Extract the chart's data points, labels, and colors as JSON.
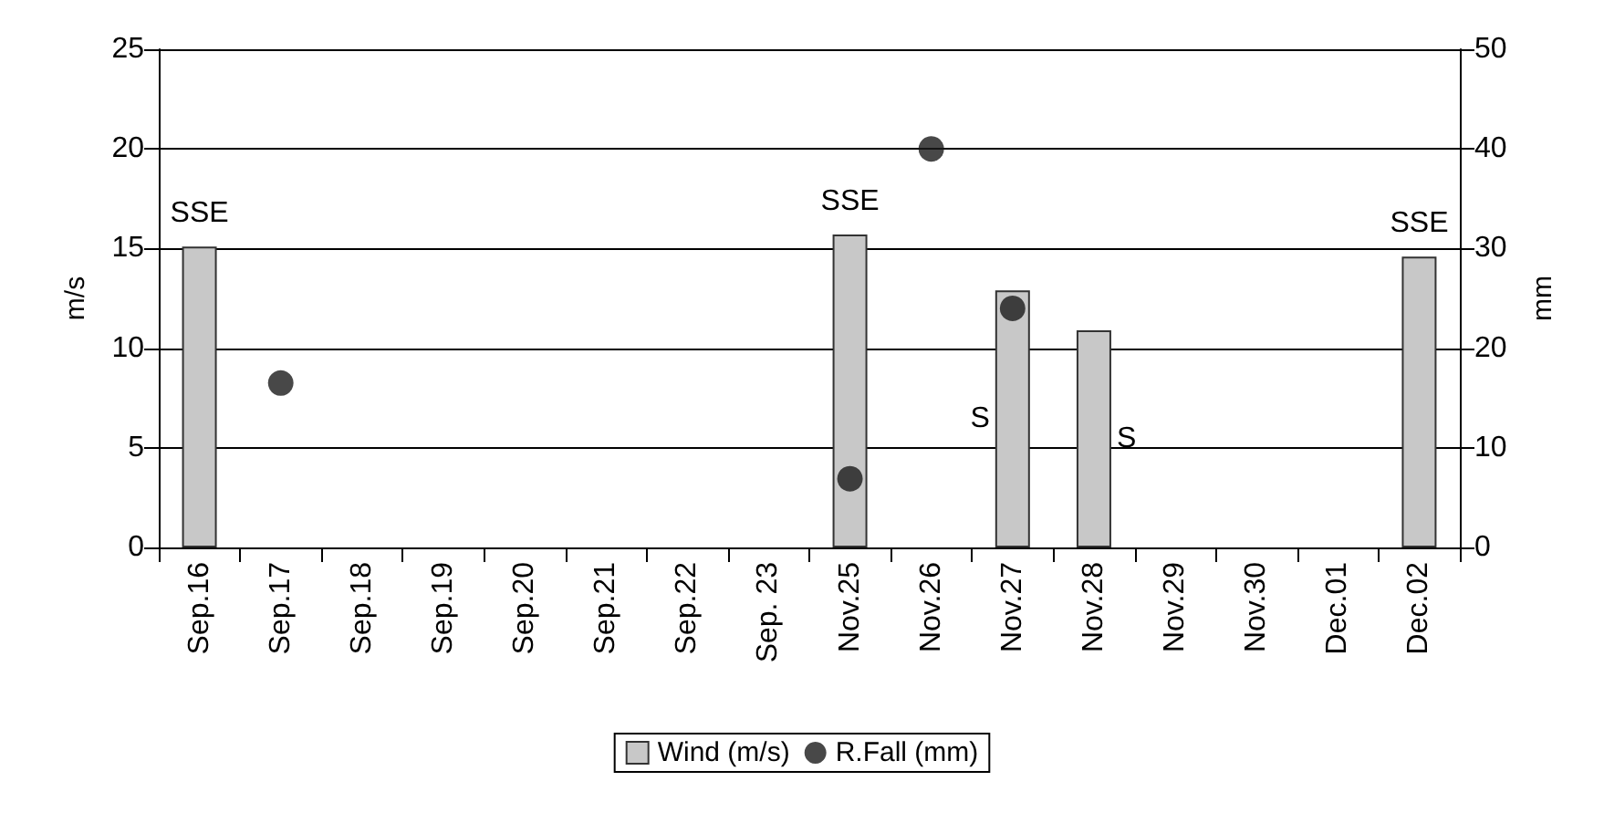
{
  "chart_data": {
    "type": "bar",
    "categories": [
      "Sep.16",
      "Sep.17",
      "Sep.18",
      "Sep.19",
      "Sep.20",
      "Sep.21",
      "Sep.22",
      "Sep. 23",
      "Nov.25",
      "Nov.26",
      "Nov.27",
      "Nov.28",
      "Nov.29",
      "Nov.30",
      "Dec.01",
      "Dec.02"
    ],
    "series": [
      {
        "name": "Wind (m/s)",
        "color": "#c8c8c8",
        "values": [
          15.1,
          null,
          null,
          null,
          null,
          null,
          null,
          null,
          15.7,
          null,
          12.9,
          10.9,
          null,
          null,
          null,
          14.6
        ],
        "value_labels": [
          "SSE",
          null,
          null,
          null,
          null,
          null,
          null,
          null,
          "SSE",
          null,
          "S",
          "S",
          null,
          null,
          null,
          "SSE"
        ]
      },
      {
        "name": "R.Fall (mm)",
        "type": "scatter",
        "axis": "y2",
        "color": "#1a1a1a",
        "marker": "circle",
        "values": [
          null,
          16.5,
          null,
          null,
          null,
          null,
          null,
          null,
          6.9,
          40.0,
          24.0,
          null,
          null,
          null,
          null,
          null
        ]
      }
    ],
    "ylabel": "m/s",
    "y2label": "mm",
    "ylim": [
      0,
      25
    ],
    "yticks": [
      0,
      5,
      10,
      15,
      20,
      25
    ],
    "y2lim": [
      0,
      50
    ],
    "y2ticks": [
      0,
      10,
      20,
      30,
      40,
      50
    ],
    "grid": "y",
    "legend": "bottom"
  }
}
